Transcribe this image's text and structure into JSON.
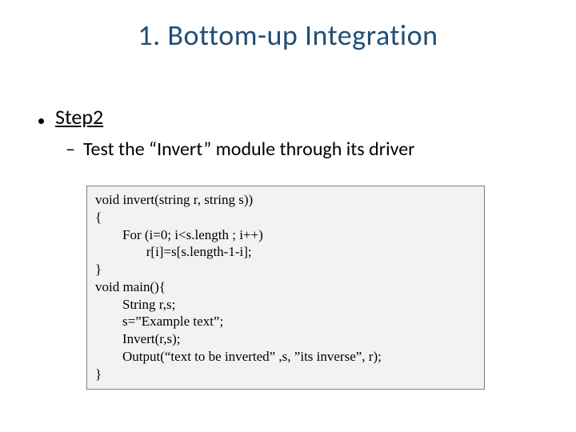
{
  "slide": {
    "title": "1. Bottom-up Integration",
    "title_color": "#1f4e79",
    "title_fontsize": 36,
    "background_color": "#ffffff",
    "bullet_l1": {
      "text": "Step2",
      "underline": true,
      "fontsize": 26
    },
    "bullet_l2": {
      "dash": "–",
      "text": "Test the “Invert” module through its driver",
      "fontsize": 24
    },
    "code": {
      "background_color": "#f2f2f2",
      "border_color": "#7f7f7f",
      "font_family": "Times New Roman",
      "fontsize": 17,
      "lines": [
        "void invert(string r, string s))",
        "{",
        "        For (i=0; i<s.length ; i++)",
        "               r[i]=s[s.length-1-i];",
        "}",
        "void main(){",
        "        String r,s;",
        "        s=”Example text”;",
        "        Invert(r,s);",
        "        Output(“text to be inverted” ,s, ”its inverse”, r);",
        "}"
      ]
    }
  }
}
